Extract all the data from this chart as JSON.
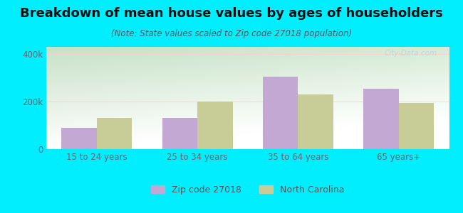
{
  "title": "Breakdown of mean house values by ages of householders",
  "subtitle": "(Note: State values scaled to Zip code 27018 population)",
  "categories": [
    "15 to 24 years",
    "25 to 34 years",
    "35 to 64 years",
    "65 years+"
  ],
  "zip_values": [
    90000,
    130000,
    305000,
    255000
  ],
  "nc_values": [
    130000,
    200000,
    230000,
    195000
  ],
  "zip_color": "#c4a8d4",
  "nc_color": "#c8cc96",
  "background_color": "#00eeff",
  "ylim": [
    0,
    430000
  ],
  "bar_width": 0.35,
  "legend_zip": "Zip code 27018",
  "legend_nc": "North Carolina",
  "title_fontsize": 13,
  "subtitle_fontsize": 8.5,
  "tick_fontsize": 8.5,
  "legend_fontsize": 9,
  "watermark": "City-Data.com"
}
